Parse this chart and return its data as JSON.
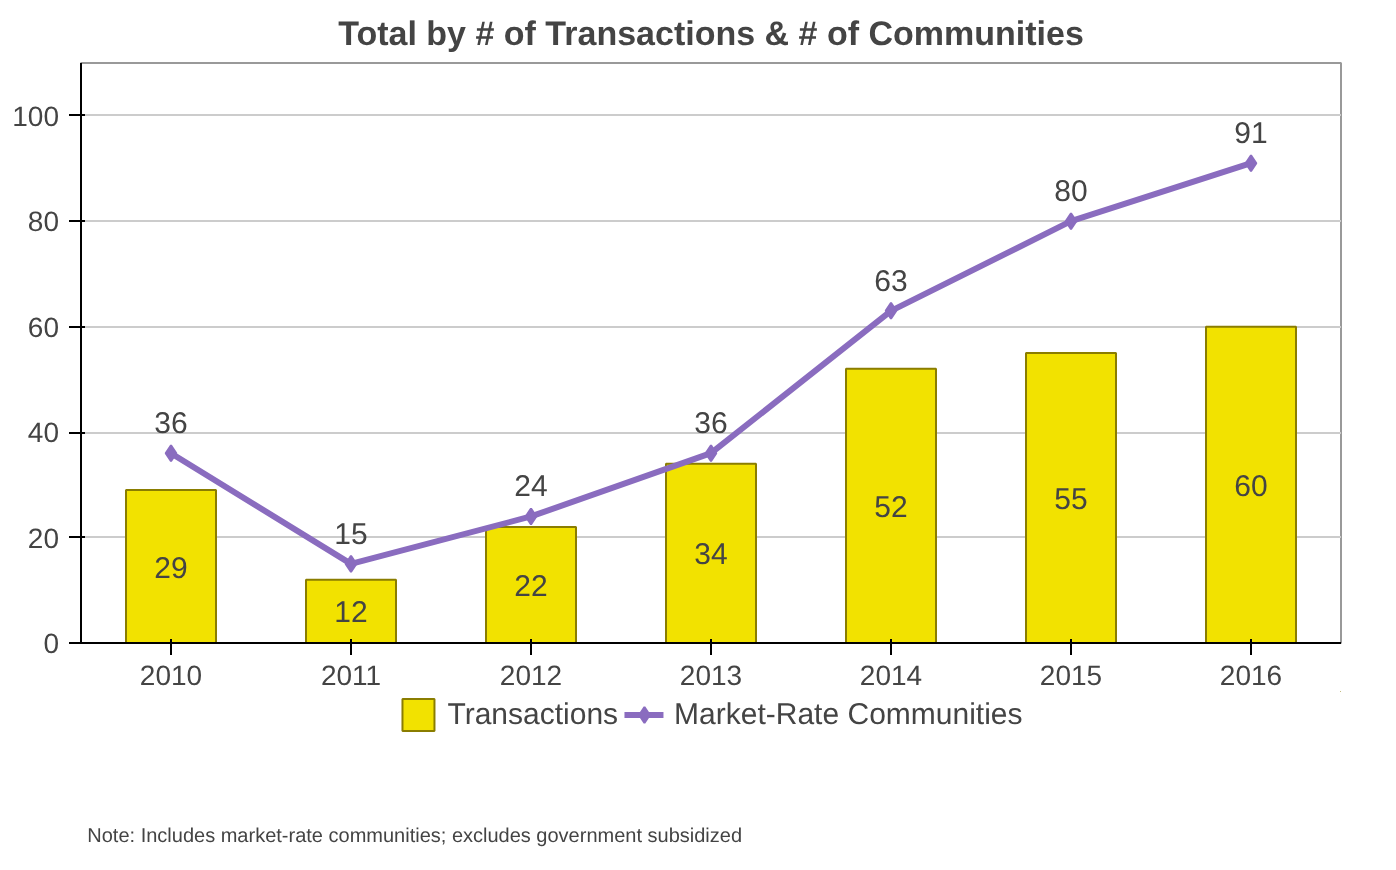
{
  "chart_data": {
    "type": "bar",
    "title": "Total by # of Transactions & # of Communities",
    "categories": [
      "2010",
      "2011",
      "2012",
      "2013",
      "2014",
      "2015",
      "2016"
    ],
    "series": [
      {
        "name": "Transactions",
        "color": "#f2e200",
        "values": [
          29,
          12,
          22,
          34,
          52,
          55,
          60
        ]
      },
      {
        "name": "Market-Rate Communities",
        "type": "line",
        "color": "#8a6cbf",
        "marker": "diamond",
        "values": [
          36,
          15,
          24,
          36,
          63,
          80,
          91
        ]
      }
    ],
    "ylim": [
      0,
      110
    ],
    "yticks": [
      0,
      20,
      40,
      60,
      80,
      100
    ],
    "grid": "y",
    "legend": "bottom",
    "data_labels": true,
    "annotations": [
      "Note: Includes market-rate communities; excludes government subsidized"
    ]
  }
}
